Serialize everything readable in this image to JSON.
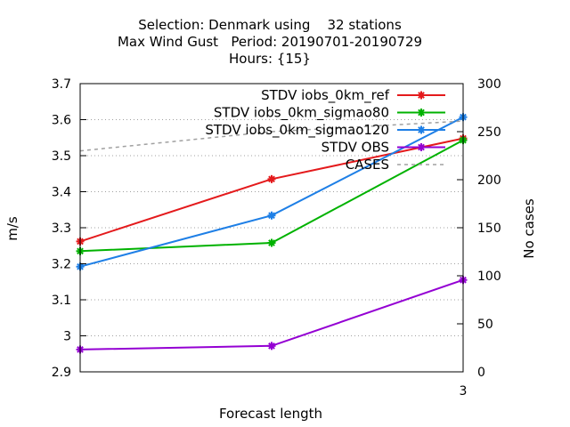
{
  "chart_data": {
    "type": "line",
    "title_lines": [
      "Selection: Denmark using    32 stations",
      "Max Wind Gust   Period: 20190701-20190729",
      "Hours: {15}"
    ],
    "xlabel": "Forecast length",
    "ylabel": "m/s",
    "y2label": "No cases",
    "x_ticks": [
      "3"
    ],
    "x_range": [
      2.0,
      3.0
    ],
    "y_range": [
      2.9,
      3.7
    ],
    "y_ticks": [
      "2.9",
      "3",
      "3.1",
      "3.2",
      "3.3",
      "3.4",
      "3.5",
      "3.6",
      "3.7"
    ],
    "y2_range": [
      0,
      300
    ],
    "y2_ticks": [
      "0",
      "50",
      "100",
      "150",
      "200",
      "250",
      "300"
    ],
    "grid": true,
    "legend_position": "top-right",
    "series": [
      {
        "name": "STDV iobs_0km_ref",
        "color": "#e41a1c",
        "style": "solid",
        "marker": "asterisk",
        "axis": "left",
        "x": [
          2.0,
          2.5,
          3.0
        ],
        "y": [
          3.262,
          3.435,
          3.548
        ]
      },
      {
        "name": "STDV iobs_0km_sigmao80",
        "color": "#00b200",
        "style": "solid",
        "marker": "asterisk",
        "axis": "left",
        "x": [
          2.0,
          2.5,
          3.0
        ],
        "y": [
          3.235,
          3.258,
          3.543
        ]
      },
      {
        "name": "STDV iobs_0km_sigmao120",
        "color": "#1e7fe6",
        "style": "solid",
        "marker": "asterisk",
        "axis": "left",
        "x": [
          2.0,
          2.5,
          3.0
        ],
        "y": [
          3.192,
          3.334,
          3.607
        ]
      },
      {
        "name": "STDV OBS",
        "color": "#9400d3",
        "style": "solid",
        "marker": "asterisk",
        "axis": "left",
        "x": [
          2.0,
          2.5,
          3.0
        ],
        "y": [
          2.962,
          2.972,
          3.155
        ]
      },
      {
        "name": "CASES",
        "color": "#a0a0a0",
        "style": "dashed",
        "marker": "none",
        "axis": "right",
        "x": [
          2.0,
          2.5,
          3.0
        ],
        "y": [
          230,
          250,
          261
        ]
      }
    ]
  }
}
